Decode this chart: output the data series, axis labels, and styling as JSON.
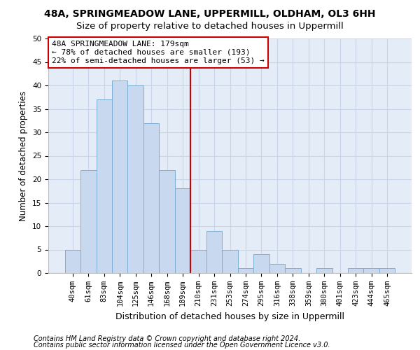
{
  "title1": "48A, SPRINGMEADOW LANE, UPPERMILL, OLDHAM, OL3 6HH",
  "title2": "Size of property relative to detached houses in Uppermill",
  "xlabel": "Distribution of detached houses by size in Uppermill",
  "ylabel": "Number of detached properties",
  "footnote1": "Contains HM Land Registry data © Crown copyright and database right 2024.",
  "footnote2": "Contains public sector information licensed under the Open Government Licence v3.0.",
  "bar_labels": [
    "40sqm",
    "61sqm",
    "83sqm",
    "104sqm",
    "125sqm",
    "146sqm",
    "168sqm",
    "189sqm",
    "210sqm",
    "231sqm",
    "253sqm",
    "274sqm",
    "295sqm",
    "316sqm",
    "338sqm",
    "359sqm",
    "380sqm",
    "401sqm",
    "423sqm",
    "444sqm",
    "465sqm"
  ],
  "bar_values": [
    5,
    22,
    37,
    41,
    40,
    32,
    22,
    18,
    5,
    9,
    5,
    1,
    4,
    2,
    1,
    0,
    1,
    0,
    1,
    1,
    1
  ],
  "bar_color": "#c8d9ef",
  "bar_edge_color": "#7aafd4",
  "bar_width": 1.0,
  "vline_x_idx": 7,
  "vline_color": "#cc0000",
  "annotation_text": "48A SPRINGMEADOW LANE: 179sqm\n← 78% of detached houses are smaller (193)\n22% of semi-detached houses are larger (53) →",
  "annotation_box_color": "#ffffff",
  "annotation_box_edge": "#cc0000",
  "ylim": [
    0,
    50
  ],
  "yticks": [
    0,
    5,
    10,
    15,
    20,
    25,
    30,
    35,
    40,
    45,
    50
  ],
  "grid_color": "#c8d4e8",
  "bg_color": "#e4ecf7",
  "title1_fontsize": 10,
  "title2_fontsize": 9.5,
  "xlabel_fontsize": 9,
  "ylabel_fontsize": 8.5,
  "tick_fontsize": 7.5,
  "annotation_fontsize": 8,
  "footnote_fontsize": 7
}
